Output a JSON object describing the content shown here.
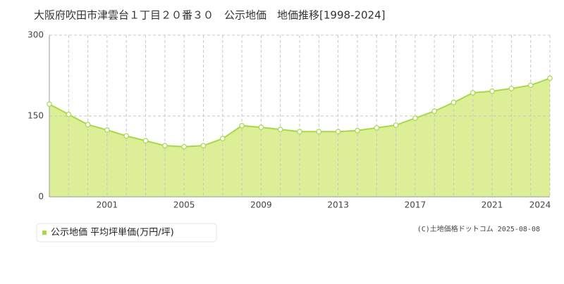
{
  "chart_data": {
    "type": "area",
    "title": "大阪府吹田市津雲台１丁目２０番３０　公示地価　地価推移[1998-2024]",
    "x": [
      1998,
      1999,
      2000,
      2001,
      2002,
      2003,
      2004,
      2005,
      2006,
      2007,
      2008,
      2009,
      2010,
      2011,
      2012,
      2013,
      2014,
      2015,
      2016,
      2017,
      2018,
      2019,
      2020,
      2021,
      2022,
      2023,
      2024
    ],
    "series": [
      {
        "name": "公示地価 平均坪単価(万円/坪)",
        "color": "#a8d84a",
        "values": [
          172,
          153,
          134,
          124,
          113,
          104,
          95,
          93,
          95,
          108,
          132,
          129,
          125,
          121,
          121,
          121,
          123,
          128,
          133,
          146,
          159,
          175,
          193,
          196,
          201,
          207,
          220
        ]
      }
    ],
    "xlim": [
      1998,
      2024
    ],
    "xticks": [
      2001,
      2005,
      2009,
      2013,
      2017,
      2021,
      2024
    ],
    "ylim": [
      0,
      300
    ],
    "yticks": [
      0,
      150,
      300
    ],
    "grid": true,
    "copyright": "(C)土地価格ドットコム 2025-08-08"
  }
}
